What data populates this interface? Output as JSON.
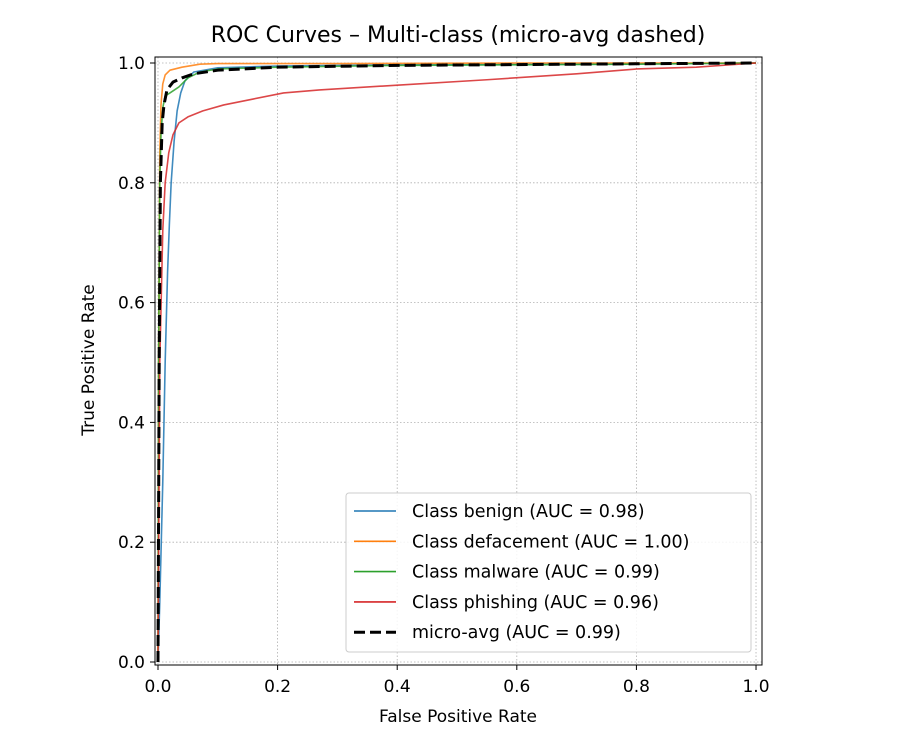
{
  "chart_data": {
    "type": "line",
    "title": "ROC Curves – Multi-class (micro-avg dashed)",
    "xlabel": "False Positive Rate",
    "ylabel": "True Positive Rate",
    "xlim": [
      -0.005,
      1.01
    ],
    "ylim": [
      -0.005,
      1.01
    ],
    "xticks": [
      "0.0",
      "0.2",
      "0.4",
      "0.6",
      "0.8",
      "1.0"
    ],
    "yticks": [
      "0.0",
      "0.2",
      "0.4",
      "0.6",
      "0.8",
      "1.0"
    ],
    "grid": true,
    "legend_position": "lower-right",
    "series": [
      {
        "name": "Class benign (AUC = 0.98)",
        "color": "#1f77b4",
        "dashed": false,
        "x": [
          0,
          0.003,
          0.008,
          0.012,
          0.016,
          0.019,
          0.022,
          0.027,
          0.032,
          0.038,
          0.045,
          0.06,
          0.1,
          0.2,
          0.4,
          0.7,
          1.0
        ],
        "y": [
          0,
          0.1,
          0.3,
          0.5,
          0.65,
          0.73,
          0.8,
          0.87,
          0.92,
          0.95,
          0.97,
          0.985,
          0.992,
          0.995,
          0.997,
          0.998,
          1.0
        ]
      },
      {
        "name": "Class defacement (AUC = 1.00)",
        "color": "#ff7f0e",
        "dashed": false,
        "x": [
          0,
          0.001,
          0.003,
          0.005,
          0.008,
          0.012,
          0.02,
          0.04,
          0.07,
          0.1,
          0.3,
          0.6,
          1.0
        ],
        "y": [
          0,
          0.5,
          0.85,
          0.93,
          0.965,
          0.98,
          0.988,
          0.993,
          0.998,
          0.999,
          0.999,
          1.0,
          1.0
        ]
      },
      {
        "name": "Class malware (AUC = 0.99)",
        "color": "#2ca02c",
        "dashed": false,
        "x": [
          0,
          0.001,
          0.003,
          0.005,
          0.008,
          0.012,
          0.02,
          0.035,
          0.05,
          0.07,
          0.1,
          0.2,
          0.4,
          0.6,
          0.8,
          1.0
        ],
        "y": [
          0,
          0.5,
          0.8,
          0.88,
          0.925,
          0.945,
          0.95,
          0.96,
          0.975,
          0.985,
          0.99,
          0.993,
          0.996,
          0.997,
          0.998,
          1.0
        ]
      },
      {
        "name": "Class phishing (AUC = 0.96)",
        "color": "#d62728",
        "dashed": false,
        "x": [
          0,
          0.003,
          0.008,
          0.012,
          0.018,
          0.025,
          0.035,
          0.05,
          0.075,
          0.11,
          0.16,
          0.21,
          0.27,
          0.4,
          0.55,
          0.7,
          0.8,
          0.9,
          1.0
        ],
        "y": [
          0,
          0.5,
          0.72,
          0.8,
          0.85,
          0.88,
          0.9,
          0.91,
          0.92,
          0.93,
          0.94,
          0.95,
          0.955,
          0.963,
          0.972,
          0.982,
          0.99,
          0.993,
          1.0
        ]
      },
      {
        "name": "micro-avg (AUC = 0.99)",
        "color": "#000000",
        "dashed": true,
        "x": [
          0,
          0.002,
          0.004,
          0.007,
          0.01,
          0.015,
          0.025,
          0.04,
          0.06,
          0.1,
          0.2,
          0.4,
          0.7,
          1.0
        ],
        "y": [
          0,
          0.5,
          0.8,
          0.9,
          0.93,
          0.955,
          0.968,
          0.975,
          0.982,
          0.988,
          0.993,
          0.996,
          0.998,
          1.0
        ]
      }
    ]
  }
}
